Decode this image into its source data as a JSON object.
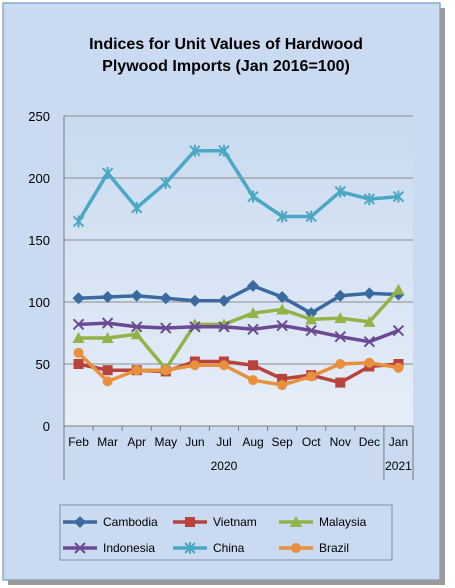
{
  "chart_data": {
    "type": "line",
    "title": "Indices for Unit Values of Hardwood",
    "subtitle": "Plywood Imports (Jan 2016=100)",
    "categories": [
      "Feb",
      "Mar",
      "Apr",
      "May",
      "Jun",
      "Jul",
      "Aug",
      "Sep",
      "Oct",
      "Nov",
      "Dec",
      "Jan"
    ],
    "year_labels": [
      {
        "label": "2020",
        "from": 0,
        "to": 10
      },
      {
        "label": "2021",
        "from": 11,
        "to": 11
      }
    ],
    "ylim": [
      0,
      250
    ],
    "yticks": [
      0,
      50,
      100,
      150,
      200,
      250
    ],
    "grid": true,
    "legend_position": "bottom",
    "series": [
      {
        "name": "Cambodia",
        "color": "#3b6aa0",
        "marker": "diamond",
        "values": [
          103,
          104,
          105,
          103,
          101,
          101,
          113,
          104,
          91,
          105,
          107,
          106
        ]
      },
      {
        "name": "Vietnam",
        "color": "#b8423c",
        "marker": "square",
        "values": [
          50,
          45,
          45,
          44,
          52,
          52,
          49,
          38,
          41,
          35,
          48,
          50
        ]
      },
      {
        "name": "Malaysia",
        "color": "#92b347",
        "marker": "triangle",
        "values": [
          71,
          71,
          74,
          46,
          82,
          82,
          91,
          94,
          86,
          87,
          84,
          110
        ]
      },
      {
        "name": "Indonesia",
        "color": "#6c4a93",
        "marker": "x",
        "values": [
          82,
          83,
          80,
          79,
          80,
          80,
          78,
          81,
          77,
          72,
          68,
          77
        ]
      },
      {
        "name": "China",
        "color": "#4aa8c4",
        "marker": "star",
        "values": [
          165,
          204,
          176,
          196,
          222,
          222,
          185,
          169,
          169,
          189,
          183,
          185
        ]
      },
      {
        "name": "Brazil",
        "color": "#e8903d",
        "marker": "circle",
        "values": [
          59,
          36,
          45,
          45,
          49,
          49,
          37,
          33,
          40,
          50,
          51,
          47
        ]
      }
    ]
  }
}
